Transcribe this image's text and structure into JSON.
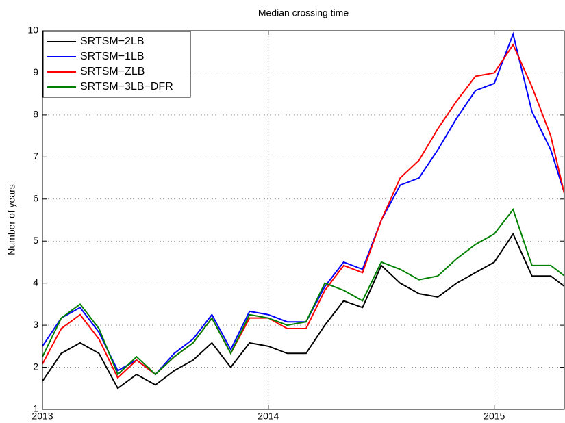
{
  "chart_data": {
    "type": "line",
    "title": "Median crossing time",
    "y_label": "Number of years",
    "x": [
      2013,
      2013.0833,
      2013.1667,
      2013.25,
      2013.3333,
      2013.4167,
      2013.5,
      2013.5833,
      2013.6667,
      2013.75,
      2013.8333,
      2013.9167,
      2014,
      2014.0833,
      2014.1667,
      2014.25,
      2014.3333,
      2014.4167,
      2014.5,
      2014.5833,
      2014.6667,
      2014.75,
      2014.8333,
      2014.9167,
      2015,
      2015.0833,
      2015.1667,
      2015.25,
      2015.3333
    ],
    "series": [
      {
        "name": "SRTSM−2LB",
        "color": "#000000",
        "values": [
          1.67,
          2.33,
          2.58,
          2.33,
          1.5,
          1.83,
          1.58,
          1.92,
          2.17,
          2.58,
          2.0,
          2.58,
          2.5,
          2.33,
          2.33,
          3.0,
          3.58,
          3.42,
          4.42,
          4.0,
          3.75,
          3.67,
          4.0,
          4.25,
          4.5,
          5.17,
          4.17,
          4.17,
          3.83
        ]
      },
      {
        "name": "SRTSM−1LB",
        "color": "#0000ff",
        "values": [
          2.5,
          3.17,
          3.42,
          2.83,
          1.92,
          2.17,
          1.83,
          2.33,
          2.67,
          3.25,
          2.42,
          3.33,
          3.25,
          3.08,
          3.08,
          3.92,
          4.5,
          4.33,
          5.5,
          6.33,
          6.5,
          7.17,
          7.92,
          8.58,
          8.75,
          9.92,
          8.08,
          7.17,
          5.75
        ]
      },
      {
        "name": "SRTSM−ZLB",
        "color": "#ff0000",
        "values": [
          2.08,
          2.92,
          3.25,
          2.67,
          1.75,
          2.17,
          1.83,
          2.25,
          2.58,
          3.17,
          2.33,
          3.17,
          3.17,
          2.92,
          2.92,
          3.83,
          4.42,
          4.25,
          5.5,
          6.5,
          6.92,
          7.67,
          8.33,
          8.92,
          9.0,
          9.67,
          8.67,
          7.5,
          5.6
        ]
      },
      {
        "name": "SRTSM−3LB−DFR",
        "color": "#008000",
        "values": [
          2.25,
          3.17,
          3.5,
          2.92,
          1.83,
          2.25,
          1.83,
          2.25,
          2.58,
          3.17,
          2.33,
          3.25,
          3.17,
          3.0,
          3.08,
          4.0,
          3.83,
          3.58,
          4.5,
          4.33,
          4.08,
          4.17,
          4.58,
          4.92,
          5.17,
          5.75,
          4.42,
          4.42,
          4.08
        ]
      }
    ],
    "xlim": [
      2013,
      2015.31
    ],
    "xticks": [
      2013,
      2014,
      2015
    ],
    "ylim": [
      1,
      10
    ],
    "yticks": [
      1,
      2,
      3,
      4,
      5,
      6,
      7,
      8,
      9,
      10
    ],
    "grid": true,
    "legend": "upper-left"
  }
}
